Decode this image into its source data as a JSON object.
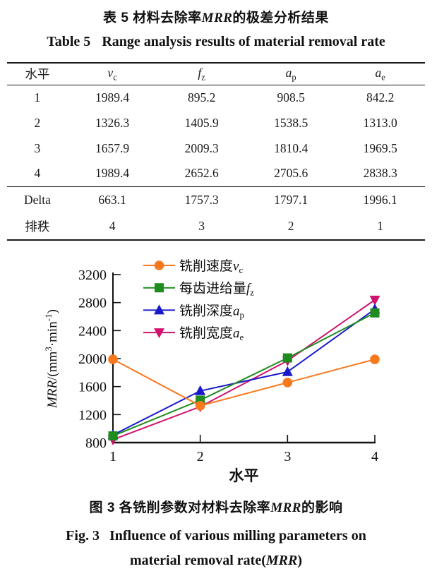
{
  "colors": {
    "ink": "#111111",
    "orange": "#F8791D",
    "green": "#1F8C1F",
    "blue": "#1A1ACC",
    "magenta": "#D0136E"
  },
  "table5": {
    "title_zh": {
      "prefix": "表 5  材料去除率",
      "italic": "MRR",
      "suffix": "的极差分析结果"
    },
    "title_en": {
      "label": "Table 5",
      "text": "Range analysis results of material removal rate"
    },
    "header": {
      "level": "水平",
      "cols": [
        {
          "base": "v",
          "sub": "c"
        },
        {
          "base": "f",
          "sub": "z"
        },
        {
          "base": "a",
          "sub": "p"
        },
        {
          "base": "a",
          "sub": "e"
        }
      ]
    },
    "rows": [
      [
        "1",
        "1989.4",
        "895.2",
        "908.5",
        "842.2"
      ],
      [
        "2",
        "1326.3",
        "1405.9",
        "1538.5",
        "1313.0"
      ],
      [
        "3",
        "1657.9",
        "2009.3",
        "1810.4",
        "1969.5"
      ],
      [
        "4",
        "1989.4",
        "2652.6",
        "2705.6",
        "2838.3"
      ]
    ],
    "delta": [
      "Delta",
      "663.1",
      "1757.3",
      "1797.1",
      "1996.1"
    ],
    "rank": [
      "排秩",
      "4",
      "3",
      "2",
      "1"
    ]
  },
  "chart_data": {
    "type": "line",
    "x": [
      1,
      2,
      3,
      4
    ],
    "xlabel": "水平",
    "ylabel": "MRR/(mm³·min⁻¹)",
    "ylabel_parts": [
      {
        "t": "MRR",
        "italic": true
      },
      {
        "t": "/(mm"
      },
      {
        "t": "3",
        "sup": true
      },
      {
        "t": "·min"
      },
      {
        "t": "-1",
        "sup": true
      },
      {
        "t": ")"
      }
    ],
    "ylim": [
      800,
      3200
    ],
    "yticks": [
      800,
      1200,
      1600,
      2000,
      2400,
      2800,
      3200
    ],
    "grid": false,
    "legend_position": "inside-top-left",
    "series": [
      {
        "key": "vc",
        "legend_text": "铣削速度",
        "legend_var": "v",
        "legend_sub": "c",
        "marker": "circle",
        "color": "#F8791D",
        "values": [
          1989.4,
          1326.3,
          1657.9,
          1989.4
        ]
      },
      {
        "key": "fz",
        "legend_text": "每齿进给量",
        "legend_var": "f",
        "legend_sub": "z",
        "marker": "square",
        "color": "#1F8C1F",
        "values": [
          895.2,
          1405.9,
          2009.3,
          2652.6
        ]
      },
      {
        "key": "ap",
        "legend_text": "铣削深度",
        "legend_var": "a",
        "legend_sub": "p",
        "marker": "triangle-up",
        "color": "#1A1ACC",
        "values": [
          908.5,
          1538.5,
          1810.4,
          2705.6
        ]
      },
      {
        "key": "ae",
        "legend_text": "铣削宽度",
        "legend_var": "a",
        "legend_sub": "e",
        "marker": "triangle-down",
        "color": "#D0136E",
        "values": [
          842.2,
          1313.0,
          1969.5,
          2838.3
        ]
      }
    ],
    "draw_order": [
      3,
      2,
      1,
      0
    ]
  },
  "figure3": {
    "caption_zh": {
      "prefix": "图 3  各铣削参数对材料去除率",
      "italic": "MRR",
      "suffix": "的影响"
    },
    "caption_en_line1": {
      "label": "Fig. 3",
      "text": "Influence of various milling parameters on"
    },
    "caption_en_line2": {
      "prefix": "material removal rate(",
      "italic": "MRR",
      "suffix": ")"
    }
  }
}
